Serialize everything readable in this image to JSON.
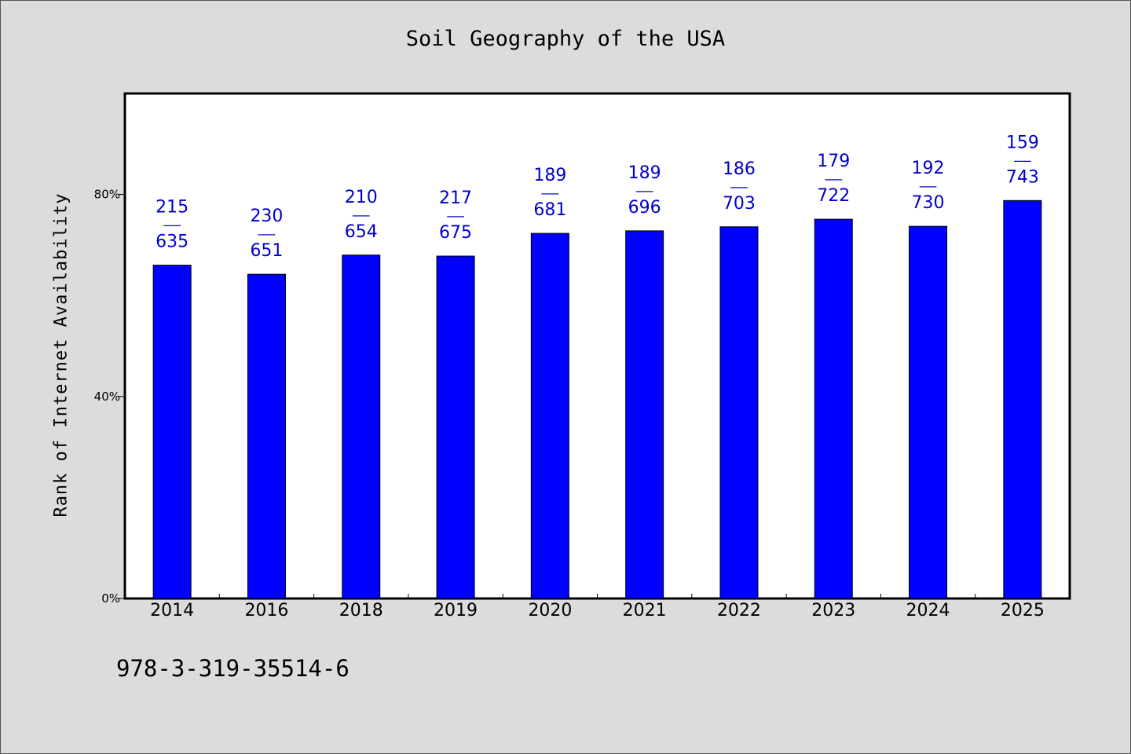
{
  "chart_data": {
    "type": "bar",
    "title": "Soil Geography of the USA",
    "xlabel": "",
    "ylabel": "Rank of Internet Availability",
    "categories": [
      "2014",
      "2016",
      "2018",
      "2019",
      "2020",
      "2021",
      "2022",
      "2023",
      "2024",
      "2025"
    ],
    "values": [
      66,
      64.2,
      68,
      67.8,
      72.3,
      72.8,
      73.6,
      75.1,
      73.7,
      78.8
    ],
    "bar_labels": [
      {
        "top": "215",
        "bottom": "635"
      },
      {
        "top": "230",
        "bottom": "651"
      },
      {
        "top": "210",
        "bottom": "654"
      },
      {
        "top": "217",
        "bottom": "675"
      },
      {
        "top": "189",
        "bottom": "681"
      },
      {
        "top": "189",
        "bottom": "696"
      },
      {
        "top": "186",
        "bottom": "703"
      },
      {
        "top": "179",
        "bottom": "722"
      },
      {
        "top": "192",
        "bottom": "730"
      },
      {
        "top": "159",
        "bottom": "743"
      }
    ],
    "label_separator": "——",
    "yticks": [
      0,
      40,
      80
    ],
    "ytick_labels": [
      "0%",
      "40%",
      "80%"
    ],
    "ylim": [
      0,
      100
    ],
    "grid": false,
    "legend": "none",
    "colors": {
      "bar": "#0000ff",
      "bar_edge": "#000000",
      "label": "#0000cc",
      "plot_background": "#ffffff",
      "figure_background": "#dcdcdc"
    }
  },
  "footer": {
    "code": "978-3-319-35514-6"
  }
}
